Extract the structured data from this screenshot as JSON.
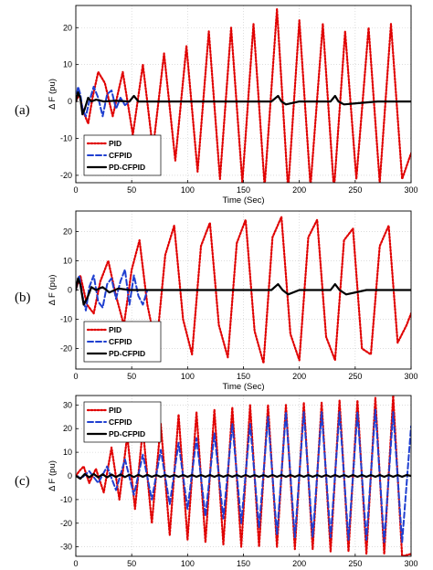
{
  "chart_data": [
    {
      "type": "line",
      "panel": "(a)",
      "xlabel": "Time (Sec)",
      "ylabel": "Δ F (pu)",
      "xlim": [
        0,
        300
      ],
      "ylim": [
        -22,
        26
      ],
      "xticks": [
        0,
        50,
        100,
        150,
        200,
        250,
        300
      ],
      "yticks": [
        20,
        10,
        0,
        -10,
        -20
      ],
      "grid": true,
      "legend": "bottom-left",
      "series": [
        {
          "name": "PID",
          "color": "#e00000",
          "style": "dotted",
          "x": [
            0,
            3,
            7,
            11,
            15,
            20,
            26,
            33,
            42,
            51,
            60,
            69,
            79,
            89,
            99,
            109,
            119,
            129,
            139,
            149,
            159,
            169,
            180,
            190,
            200,
            210,
            221,
            231,
            241,
            251,
            262,
            272,
            282,
            292,
            300
          ],
          "y": [
            0,
            2,
            -3,
            -6,
            1,
            8,
            5,
            -4,
            8,
            -9,
            10,
            -13,
            13,
            -16,
            15,
            -19,
            19,
            -21,
            20,
            -22,
            21,
            -23,
            25,
            -24,
            22,
            -23,
            21,
            -24,
            19,
            -21,
            20,
            -22,
            21,
            -21,
            -14
          ]
        },
        {
          "name": "CFPID",
          "color": "#1f3fd0",
          "style": "dashed",
          "x": [
            0,
            2,
            4,
            6,
            9,
            12,
            16,
            20,
            24,
            28,
            32,
            36,
            40,
            44,
            48
          ],
          "y": [
            0,
            4,
            2,
            -2,
            -4,
            0,
            4,
            1,
            -4,
            2,
            3,
            -2,
            1,
            -1,
            0
          ]
        },
        {
          "name": "PD-CFPID",
          "color": "#000000",
          "style": "solid",
          "x": [
            0,
            2,
            4,
            6,
            8,
            11,
            14,
            18,
            25,
            35,
            48,
            52,
            56,
            70,
            100,
            130,
            175,
            181,
            184,
            188,
            200,
            228,
            232,
            235,
            240,
            270,
            300
          ],
          "y": [
            0,
            2.5,
            1,
            -3.5,
            -2,
            1,
            0,
            0.5,
            0,
            0.2,
            0,
            1.5,
            0,
            0,
            0,
            0,
            0,
            1.5,
            0,
            -0.8,
            0,
            0,
            1.5,
            0,
            -0.8,
            0,
            0
          ]
        }
      ]
    },
    {
      "type": "line",
      "panel": "(b)",
      "xlabel": "Time (Sec)",
      "ylabel": "Δ F (pu)",
      "xlim": [
        0,
        300
      ],
      "ylim": [
        -27,
        27
      ],
      "xticks": [
        0,
        50,
        100,
        150,
        200,
        250,
        300
      ],
      "yticks": [
        20,
        10,
        0,
        -10,
        -20
      ],
      "grid": true,
      "legend": "bottom-left",
      "series": [
        {
          "name": "PID",
          "color": "#e00000",
          "style": "dotted",
          "x": [
            0,
            4,
            10,
            16,
            22,
            29,
            36,
            43,
            50,
            57,
            64,
            72,
            80,
            88,
            96,
            104,
            112,
            120,
            128,
            136,
            144,
            152,
            160,
            168,
            176,
            184,
            192,
            200,
            208,
            216,
            224,
            232,
            240,
            248,
            256,
            264,
            272,
            280,
            288,
            296,
            300
          ],
          "y": [
            0,
            5,
            -5,
            -8,
            3,
            10,
            -2,
            -12,
            7,
            17,
            -5,
            -20,
            12,
            22,
            -10,
            -22,
            15,
            23,
            -12,
            -23,
            16,
            24,
            -14,
            -25,
            18,
            25,
            -15,
            -24,
            18,
            24,
            -16,
            -24,
            17,
            21,
            -20,
            -22,
            15,
            22,
            -18,
            -12,
            -8
          ]
        },
        {
          "name": "CFPID",
          "color": "#1f3fd0",
          "style": "dashed",
          "x": [
            0,
            3,
            6,
            9,
            12,
            16,
            20,
            24,
            28,
            32,
            36,
            40,
            44,
            48,
            52,
            56,
            60,
            64
          ],
          "y": [
            0,
            5,
            -2,
            -7,
            1,
            5,
            -4,
            -6,
            2,
            4,
            -3,
            3,
            7,
            -5,
            5,
            -2,
            -5,
            0
          ]
        },
        {
          "name": "PD-CFPID",
          "color": "#000000",
          "style": "solid",
          "x": [
            0,
            2,
            4,
            7,
            10,
            14,
            18,
            24,
            30,
            38,
            48,
            60,
            80,
            120,
            175,
            181,
            185,
            190,
            200,
            228,
            232,
            236,
            242,
            260,
            300
          ],
          "y": [
            0,
            4,
            2,
            -5,
            -3,
            1,
            0,
            1,
            -0.8,
            0.5,
            0,
            0,
            0,
            0,
            0,
            2,
            0,
            -1.5,
            0,
            0,
            2,
            0,
            -1.5,
            0,
            0
          ]
        }
      ]
    },
    {
      "type": "line",
      "panel": "(c)",
      "xlabel": "Time (Sec)",
      "ylabel": "Δ F (pu)",
      "xlim": [
        0,
        300
      ],
      "ylim": [
        -34,
        34
      ],
      "xticks": [
        0,
        50,
        100,
        150,
        200,
        250,
        300
      ],
      "yticks": [
        30,
        20,
        10,
        0,
        -10,
        -20,
        -30
      ],
      "grid": true,
      "legend": "top-left",
      "series": [
        {
          "name": "PID",
          "color": "#e00000",
          "style": "dotted",
          "x": [
            0,
            3,
            7,
            12,
            18,
            25,
            32,
            39,
            46,
            53,
            60,
            68,
            76,
            84,
            92,
            100,
            108,
            116,
            124,
            132,
            140,
            148,
            156,
            164,
            172,
            180,
            188,
            196,
            204,
            212,
            220,
            228,
            236,
            244,
            252,
            260,
            268,
            276,
            284,
            292,
            300
          ],
          "y": [
            0,
            2,
            4,
            -3,
            3,
            -7,
            12,
            -10,
            17,
            -14,
            20,
            -20,
            22,
            -25,
            26,
            -27,
            27,
            -28,
            28,
            -29,
            29,
            -30,
            30,
            -30,
            30,
            -30,
            30,
            -31,
            31,
            -31,
            31,
            -32,
            32,
            -32,
            32,
            -33,
            33,
            -33,
            34,
            -34,
            -33
          ]
        },
        {
          "name": "CFPID",
          "color": "#1f3fd0",
          "style": "dashed",
          "x": [
            0,
            5,
            12,
            20,
            28,
            36,
            44,
            52,
            60,
            68,
            76,
            84,
            92,
            100,
            108,
            116,
            124,
            132,
            140,
            148,
            156,
            164,
            172,
            180,
            188,
            196,
            204,
            212,
            220,
            228,
            236,
            244,
            252,
            260,
            268,
            276,
            284,
            292,
            300
          ],
          "y": [
            0,
            -1,
            2,
            -3,
            4,
            -6,
            7,
            -8,
            9,
            -10,
            11,
            -12,
            14,
            -14,
            16,
            -17,
            18,
            -18,
            22,
            -20,
            22,
            -22,
            25,
            -25,
            27,
            -26,
            27,
            -26,
            27,
            -26,
            27,
            -27,
            27,
            -27,
            28,
            -28,
            27,
            -28,
            21
          ]
        },
        {
          "name": "PD-CFPID",
          "color": "#000000",
          "style": "solid",
          "x": [
            0,
            4,
            8,
            12,
            16,
            20,
            24,
            28,
            32,
            36,
            40,
            44,
            48,
            52,
            56,
            60,
            64,
            68,
            72,
            76,
            80,
            84,
            88,
            92,
            96,
            100,
            104,
            108,
            112,
            116,
            120,
            124,
            128,
            132,
            136,
            140,
            144,
            148,
            152,
            156,
            160,
            164,
            168,
            172,
            176,
            180,
            184,
            188,
            192,
            196,
            200,
            204,
            208,
            212,
            216,
            220,
            224,
            228,
            232,
            236,
            240,
            244,
            248,
            252,
            256,
            260,
            264,
            268,
            272,
            276,
            280,
            284,
            288,
            292,
            296,
            300
          ],
          "y": [
            0,
            -1.2,
            0.8,
            -0.6,
            0.8,
            -0.6,
            0.7,
            -0.6,
            0.6,
            -0.5,
            0.6,
            -0.5,
            0.5,
            -0.5,
            0.5,
            -0.4,
            0.5,
            -0.4,
            0.4,
            -0.4,
            0.4,
            -0.4,
            0.4,
            -0.4,
            0.4,
            -0.4,
            0.4,
            -0.4,
            0.4,
            -0.4,
            0.4,
            -0.4,
            0.4,
            -0.4,
            0.4,
            -0.4,
            0.4,
            -0.4,
            0.4,
            -0.4,
            0.4,
            -0.4,
            0.4,
            -0.4,
            0.4,
            -0.4,
            0.4,
            -0.4,
            0.4,
            -0.4,
            0.4,
            -0.4,
            0.4,
            -0.4,
            0.4,
            -0.4,
            0.4,
            -0.4,
            0.4,
            -0.4,
            0.4,
            -0.4,
            0.4,
            -0.4,
            0.4,
            -0.4,
            0.4,
            -0.4,
            0.4,
            -0.4,
            0.4,
            -0.4,
            0.4,
            -0.4,
            0.4,
            0
          ]
        }
      ]
    }
  ]
}
